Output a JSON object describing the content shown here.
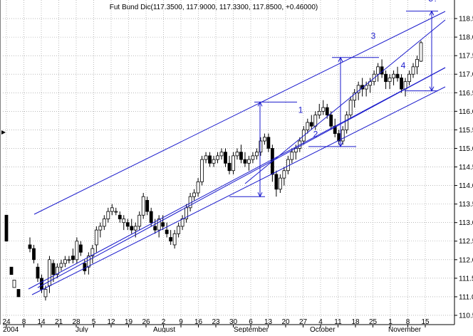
{
  "chart_data": {
    "type": "candlestick",
    "title": "Fut Bund Dic(117.3500, 117.9000, 117.3300, 117.8500, +0.46000)",
    "ylim": [
      110.25,
      119.0
    ],
    "y_ticks": [
      "110.5",
      "111.0",
      "111.5",
      "112.0",
      "112.5",
      "113.0",
      "113.5",
      "114.0",
      "114.5",
      "115.0",
      "115.5",
      "116.0",
      "116.5",
      "117.0",
      "117.5",
      "118.0",
      "118.5"
    ],
    "x_tick_labels": [
      "24",
      "8",
      "14",
      "21",
      "28",
      "5",
      "12",
      "19",
      "26",
      "2",
      "9",
      "16",
      "23",
      "30",
      "6",
      "13",
      "20",
      "27",
      "4",
      "11",
      "18",
      "25",
      "1",
      "8",
      "15"
    ],
    "x_months": [
      "2004",
      "July",
      "August",
      "September",
      "October",
      "November"
    ],
    "grid": true,
    "colors": {
      "bull": "#ffffff",
      "bear": "#000000",
      "channel": "#1a1acc",
      "grid": "#909090"
    },
    "series": [
      {
        "ohlc": [
          [
            112.4,
            112.6,
            112.2,
            112.3
          ],
          [
            112.3,
            112.4,
            111.9,
            112.0
          ],
          [
            111.8,
            111.9,
            111.4,
            111.5
          ],
          [
            111.5,
            111.6,
            111.1,
            111.2
          ],
          [
            111.0,
            111.3,
            110.9,
            111.2
          ],
          [
            111.3,
            112.1,
            111.1,
            112.0
          ],
          [
            111.9,
            112.0,
            111.4,
            111.6
          ],
          [
            111.6,
            111.9,
            111.5,
            111.8
          ],
          [
            111.8,
            112.0,
            111.7,
            111.9
          ],
          [
            111.9,
            112.1,
            111.8,
            112.0
          ],
          [
            112.0,
            112.1,
            111.9,
            112.0
          ],
          [
            112.1,
            112.3,
            111.9,
            112.0
          ],
          [
            112.0,
            112.6,
            111.9,
            112.5
          ],
          [
            112.4,
            112.5,
            112.1,
            112.2
          ],
          [
            111.9,
            112.0,
            111.6,
            111.7
          ],
          [
            111.8,
            112.2,
            111.6,
            112.1
          ],
          [
            112.1,
            112.4,
            111.9,
            112.3
          ],
          [
            112.4,
            112.9,
            112.2,
            112.8
          ],
          [
            112.8,
            113.0,
            112.6,
            112.9
          ],
          [
            112.9,
            113.2,
            112.8,
            113.1
          ],
          [
            113.1,
            113.4,
            113.0,
            113.3
          ],
          [
            113.3,
            113.5,
            113.2,
            113.4
          ],
          [
            113.3,
            113.4,
            113.2,
            113.3
          ],
          [
            113.2,
            113.3,
            113.0,
            113.1
          ],
          [
            113.0,
            113.2,
            112.8,
            113.1
          ],
          [
            113.0,
            113.1,
            112.8,
            112.9
          ],
          [
            112.9,
            113.1,
            112.7,
            112.8
          ],
          [
            112.8,
            113.0,
            112.6,
            112.9
          ],
          [
            112.9,
            113.3,
            112.8,
            113.2
          ],
          [
            113.2,
            113.8,
            113.1,
            113.7
          ],
          [
            113.6,
            113.7,
            113.2,
            113.3
          ],
          [
            113.3,
            113.4,
            112.9,
            113.0
          ],
          [
            112.9,
            113.1,
            112.7,
            112.8
          ],
          [
            112.8,
            113.2,
            112.6,
            113.1
          ],
          [
            113.0,
            113.2,
            112.8,
            112.9
          ],
          [
            112.8,
            113.0,
            112.6,
            112.7
          ],
          [
            112.6,
            112.8,
            112.4,
            112.5
          ],
          [
            112.4,
            112.8,
            112.3,
            112.7
          ],
          [
            112.7,
            113.0,
            112.6,
            112.9
          ],
          [
            112.9,
            113.2,
            112.8,
            113.1
          ],
          [
            113.1,
            113.5,
            113.0,
            113.4
          ],
          [
            113.4,
            113.8,
            113.3,
            113.7
          ],
          [
            113.7,
            113.9,
            113.6,
            113.8
          ],
          [
            113.8,
            114.2,
            113.7,
            114.1
          ],
          [
            114.1,
            114.8,
            114.0,
            114.7
          ],
          [
            114.7,
            114.9,
            114.6,
            114.8
          ],
          [
            114.8,
            114.9,
            114.5,
            114.6
          ],
          [
            114.6,
            114.8,
            114.5,
            114.7
          ],
          [
            114.7,
            114.9,
            114.6,
            114.8
          ],
          [
            114.8,
            115.0,
            114.7,
            114.9
          ],
          [
            114.9,
            115.0,
            114.5,
            114.6
          ],
          [
            114.6,
            114.8,
            114.3,
            114.4
          ],
          [
            114.4,
            114.9,
            114.3,
            114.8
          ],
          [
            114.8,
            115.0,
            114.7,
            114.9
          ],
          [
            114.9,
            115.1,
            114.6,
            114.7
          ],
          [
            114.7,
            114.9,
            114.5,
            114.6
          ],
          [
            114.6,
            114.8,
            114.4,
            114.7
          ],
          [
            114.7,
            114.9,
            114.6,
            114.8
          ],
          [
            114.8,
            115.0,
            114.7,
            114.9
          ],
          [
            114.9,
            115.3,
            114.8,
            115.2
          ],
          [
            115.2,
            115.4,
            115.1,
            115.3
          ],
          [
            115.3,
            115.4,
            114.9,
            115.0
          ],
          [
            115.0,
            115.1,
            114.1,
            114.3
          ],
          [
            114.3,
            114.4,
            113.7,
            113.9
          ],
          [
            113.9,
            114.3,
            113.8,
            114.2
          ],
          [
            114.2,
            114.5,
            114.0,
            114.4
          ],
          [
            114.4,
            114.8,
            114.3,
            114.7
          ],
          [
            114.7,
            115.0,
            114.6,
            114.9
          ],
          [
            114.9,
            115.1,
            114.7,
            115.0
          ],
          [
            115.0,
            115.3,
            114.9,
            115.2
          ],
          [
            115.2,
            115.6,
            115.1,
            115.5
          ],
          [
            115.5,
            115.8,
            115.4,
            115.7
          ],
          [
            115.7,
            115.9,
            115.5,
            115.6
          ],
          [
            115.6,
            116.0,
            115.5,
            115.9
          ],
          [
            115.9,
            116.2,
            115.8,
            116.0
          ],
          [
            116.0,
            116.3,
            115.9,
            116.1
          ],
          [
            116.1,
            116.2,
            115.8,
            115.9
          ],
          [
            115.9,
            116.0,
            115.5,
            115.6
          ],
          [
            115.6,
            115.8,
            115.3,
            115.4
          ],
          [
            115.4,
            115.5,
            115.1,
            115.2
          ],
          [
            115.2,
            115.6,
            115.1,
            115.5
          ],
          [
            115.5,
            116.0,
            115.4,
            115.9
          ],
          [
            115.9,
            116.4,
            115.8,
            116.3
          ],
          [
            116.3,
            116.6,
            116.1,
            116.5
          ],
          [
            116.5,
            116.8,
            116.3,
            116.7
          ],
          [
            116.7,
            116.9,
            116.4,
            116.6
          ],
          [
            116.6,
            116.8,
            116.4,
            116.7
          ],
          [
            116.7,
            116.9,
            116.5,
            116.8
          ],
          [
            116.8,
            117.1,
            116.7,
            117.0
          ],
          [
            117.0,
            117.3,
            116.8,
            117.2
          ],
          [
            117.2,
            117.4,
            116.9,
            117.0
          ],
          [
            117.0,
            117.1,
            116.6,
            116.8
          ],
          [
            116.8,
            117.0,
            116.6,
            116.9
          ],
          [
            116.9,
            117.1,
            116.7,
            117.0
          ],
          [
            117.0,
            117.2,
            116.8,
            116.9
          ],
          [
            116.9,
            117.0,
            116.5,
            116.6
          ],
          [
            116.6,
            116.9,
            116.4,
            116.8
          ],
          [
            116.8,
            117.1,
            116.7,
            117.0
          ],
          [
            117.0,
            117.3,
            116.9,
            117.2
          ],
          [
            117.2,
            117.5,
            117.0,
            117.4
          ],
          [
            117.35,
            117.9,
            117.33,
            117.85
          ]
        ]
      }
    ],
    "annotations": [
      {
        "label": "1",
        "value": 116.25
      },
      {
        "label": "2",
        "value": 115.05
      },
      {
        "label": "3",
        "value": 117.45
      },
      {
        "label": "4",
        "value": 116.55
      },
      {
        "label": "5?",
        "value": 118.7
      }
    ]
  }
}
